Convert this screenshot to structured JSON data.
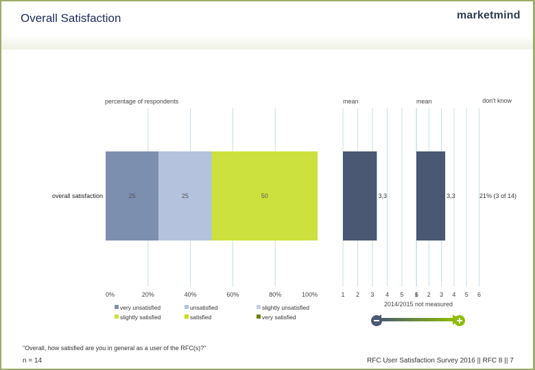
{
  "page": {
    "title": "Overall Satisfaction",
    "logo": "marketmind",
    "question": "\"Overall, how satisfied are you in general as a user of the RFC(s)?\"",
    "sample": "n = 14",
    "source": "RFC User Satisfaction Survey 2016 || RFC 8 || 7",
    "not_measured_note": "2014/2015 not measured"
  },
  "colors": {
    "very_unsatisfied": "#7d8fae",
    "unsatisfied": "#b4c2dd",
    "slightly_unsatisfied": "#c3cfe6",
    "slightly_satisfied": "#cde13e",
    "satisfied": "#cbe000",
    "very_satisfied": "#6f8200",
    "mean_bar": "#4a5873",
    "grid": "#c7dde6",
    "arrow_minus": "#4a5873",
    "arrow_plus": "#8fbd00"
  },
  "chart_data": {
    "type": "bar",
    "orientation": "horizontal-stacked",
    "title": "",
    "x_section_label": "percentage of respondents",
    "categories": [
      "overall satisfaction"
    ],
    "x_ticks": [
      "0%",
      "20%",
      "40%",
      "60%",
      "80%",
      "100%"
    ],
    "xlim": [
      0,
      100
    ],
    "series": [
      {
        "name": "very unsatisfied",
        "values": [
          25
        ],
        "label": "25"
      },
      {
        "name": "unsatisfied",
        "values": [
          25
        ],
        "label": "25"
      },
      {
        "name": "slightly unsatisfied",
        "values": [
          0
        ],
        "label": ""
      },
      {
        "name": "slightly satisfied",
        "values": [
          50
        ],
        "label": "50"
      },
      {
        "name": "satisfied",
        "values": [
          0
        ],
        "label": ""
      },
      {
        "name": "very satisfied",
        "values": [
          0
        ],
        "label": ""
      }
    ],
    "legend": [
      "very unsatisfied",
      "unsatisfied",
      "slightly unsatisfied",
      "slightly satisfied",
      "satisfied",
      "very satisfied"
    ],
    "mean_panels": [
      {
        "label": "mean",
        "value": 3.3,
        "value_label": "3,3",
        "ticks": [
          "1",
          "2",
          "3",
          "4",
          "5",
          "6"
        ],
        "range": [
          1,
          6
        ]
      },
      {
        "label": "mean",
        "value": 3.3,
        "value_label": "3,3",
        "ticks": [
          "1",
          "2",
          "3",
          "4",
          "5",
          "6"
        ],
        "range": [
          1,
          6
        ]
      }
    ],
    "dont_know": {
      "label": "don't know",
      "value": "21% (3 of 14)"
    }
  }
}
